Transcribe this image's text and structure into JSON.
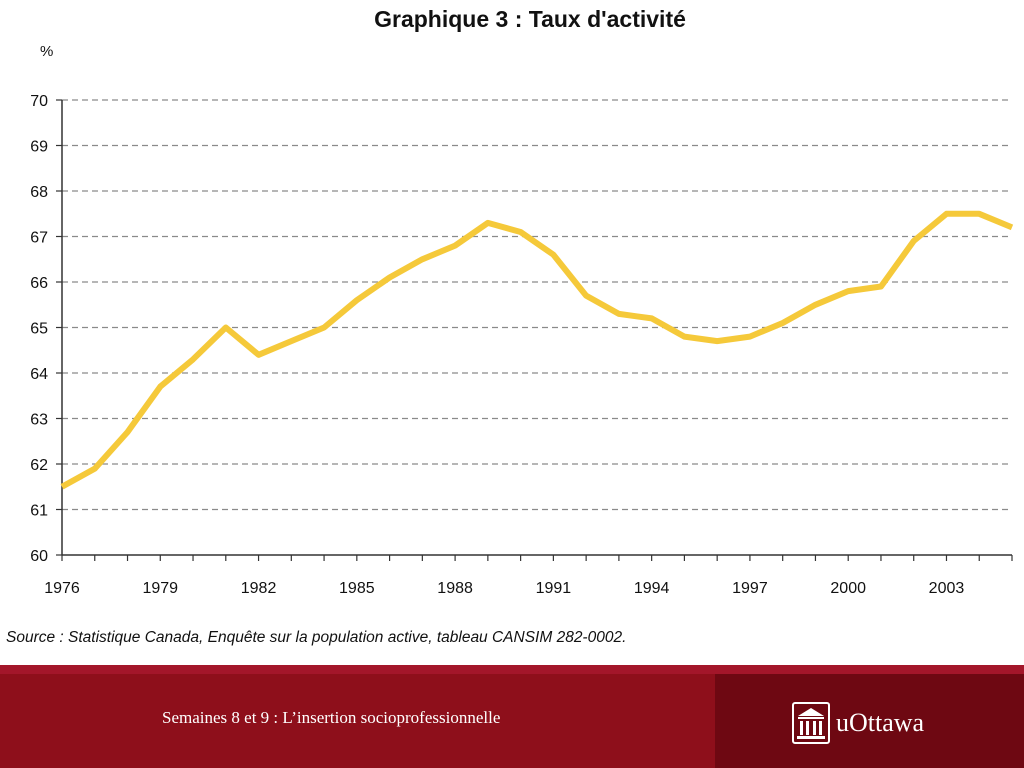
{
  "chart_data": {
    "type": "line",
    "title": "Graphique 3 : Taux d'activité",
    "ylabel": "%",
    "xlabel": "",
    "ylim": [
      60,
      70
    ],
    "xlim": [
      1976,
      2005
    ],
    "yticks": [
      60,
      61,
      62,
      63,
      64,
      65,
      66,
      67,
      68,
      69,
      70
    ],
    "xtick_labels": [
      "1976",
      "1979",
      "1982",
      "1985",
      "1988",
      "1991",
      "1994",
      "1997",
      "2000",
      "2003"
    ],
    "grid": true,
    "series": [
      {
        "color": "#f5c93a",
        "x": [
          1976,
          1977,
          1978,
          1979,
          1980,
          1981,
          1982,
          1983,
          1984,
          1985,
          1986,
          1987,
          1988,
          1989,
          1990,
          1991,
          1992,
          1993,
          1994,
          1995,
          1996,
          1997,
          1998,
          1999,
          2000,
          2001,
          2002,
          2003,
          2004,
          2005
        ],
        "values": [
          61.5,
          61.9,
          62.7,
          63.7,
          64.3,
          65.0,
          64.4,
          64.7,
          65.0,
          65.6,
          66.1,
          66.5,
          66.8,
          67.3,
          67.1,
          66.6,
          65.7,
          65.3,
          65.2,
          64.8,
          64.7,
          64.8,
          65.1,
          65.5,
          65.8,
          65.9,
          66.9,
          67.5,
          67.5,
          67.2
        ]
      }
    ]
  },
  "source": "Source : Statistique Canada, Enquête sur la population active, tableau CANSIM 282-0002.",
  "footer": {
    "text": "Semaines 8 et 9 : L’insertion socioprofessionnelle",
    "logo_text": "uOttawa",
    "logo_icon": "building-icon"
  },
  "colors": {
    "line": "#f5c93a",
    "footer_bg": "#8e0f1b",
    "footer_right_bg": "#6e0812"
  }
}
